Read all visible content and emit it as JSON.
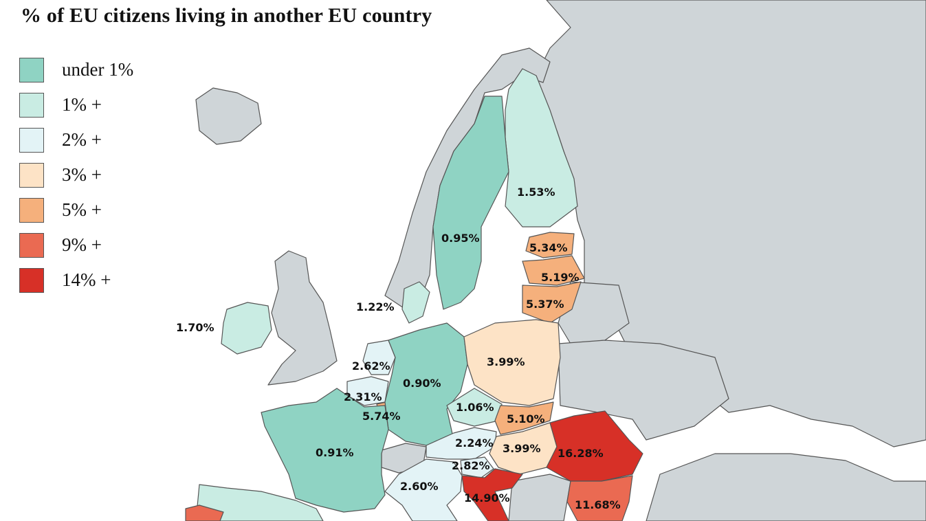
{
  "title": "% of EU citizens living in another EU country",
  "colors": {
    "sea": "#ffffff",
    "non_eu": "#cfd5d8",
    "border": "#555555"
  },
  "legend": [
    {
      "label": "under 1%",
      "color": "#8fd3c3"
    },
    {
      "label": "1% +",
      "color": "#c9ece3"
    },
    {
      "label": "2% +",
      "color": "#e3f3f6"
    },
    {
      "label": "3% +",
      "color": "#fde3c6"
    },
    {
      "label": "5% +",
      "color": "#f5b07c"
    },
    {
      "label": "9% +",
      "color": "#ea6a52"
    },
    {
      "label": "14% +",
      "color": "#d73027"
    }
  ],
  "countries": {
    "finland": {
      "value": "1.53%",
      "class": 1
    },
    "sweden": {
      "value": "0.95%",
      "class": 0
    },
    "denmark": {
      "value": "1.22%",
      "class": 1
    },
    "estonia": {
      "value": "5.34%",
      "class": 4
    },
    "latvia": {
      "value": "5.19%",
      "class": 4
    },
    "lithuania": {
      "value": "5.37%",
      "class": 4
    },
    "ireland": {
      "value": "1.70%",
      "class": 1
    },
    "netherlands": {
      "value": "2.62%",
      "class": 2
    },
    "belgium": {
      "value": "2.31%",
      "class": 2
    },
    "luxembourg": {
      "value": "5.74%",
      "class": 4
    },
    "germany": {
      "value": "0.90%",
      "class": 0
    },
    "poland": {
      "value": "3.99%",
      "class": 3
    },
    "czechia": {
      "value": "1.06%",
      "class": 1
    },
    "slovakia": {
      "value": "5.10%",
      "class": 4
    },
    "austria": {
      "value": "2.24%",
      "class": 2
    },
    "hungary": {
      "value": "3.99%",
      "class": 3
    },
    "slovenia": {
      "value": "2.82%",
      "class": 2
    },
    "romania": {
      "value": "16.28%",
      "class": 6
    },
    "bulgaria": {
      "value": "11.68%",
      "class": 5
    },
    "croatia": {
      "value": "14.90%",
      "class": 6
    },
    "italy": {
      "value": "2.60%",
      "class": 2
    },
    "france": {
      "value": "0.91%",
      "class": 0
    },
    "portugal": {
      "value": "",
      "class": 5
    },
    "spain": {
      "value": "",
      "class": 1
    }
  }
}
